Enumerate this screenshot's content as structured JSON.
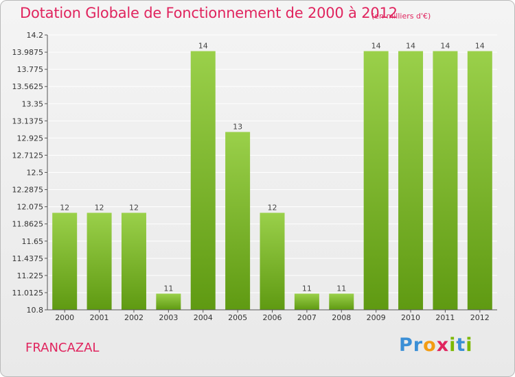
{
  "header": {
    "title": "Dotation Globale de Fonctionnement de 2000 à 2012",
    "subtitle": "(en milliers d'€)"
  },
  "footer": {
    "city": "FRANCAZAL",
    "logo_letters": [
      "P",
      "r",
      "o",
      "x",
      "i",
      "t",
      "i"
    ],
    "logo_colors": [
      "#3a8fd6",
      "#3a8fd6",
      "#f39c12",
      "#e0245e",
      "#7cb800",
      "#3a8fd6",
      "#7cb800"
    ]
  },
  "colors": {
    "title": "#e0245e",
    "bar_light": "#9ad04a",
    "bar_dark": "#5f9a12",
    "grid": "#ffffff"
  },
  "chart_data": {
    "type": "bar",
    "title": "Dotation Globale de Fonctionnement de 2000 à 2012",
    "categories": [
      "2000",
      "2001",
      "2002",
      "2003",
      "2004",
      "2005",
      "2006",
      "2007",
      "2008",
      "2009",
      "2010",
      "2011",
      "2012"
    ],
    "values": [
      12,
      12,
      12,
      11,
      14,
      13,
      12,
      11,
      11,
      14,
      14,
      14,
      14
    ],
    "data_labels": [
      "12",
      "12",
      "12",
      "11",
      "14",
      "13",
      "12",
      "11",
      "11",
      "14",
      "14",
      "14",
      "14"
    ],
    "y_ticks": [
      "14.2",
      "13.9875",
      "13.775",
      "13.5625",
      "13.35",
      "13.1375",
      "12.925",
      "12.7125",
      "12.5",
      "12.2875",
      "12.075",
      "11.8625",
      "11.65",
      "11.4375",
      "11.225",
      "11.0125",
      "10.8"
    ],
    "ylim": [
      10.8,
      14.2
    ],
    "grid": true,
    "legend": "none"
  }
}
